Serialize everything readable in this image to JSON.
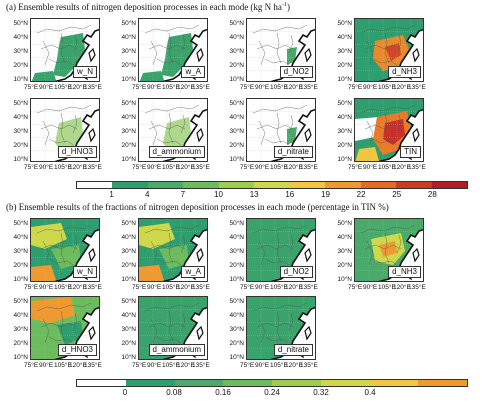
{
  "section_a": {
    "title": "(a) Ensemble results of nitrogen deposition processes in each mode (kg N ha",
    "title_sup": "-1",
    "title_end": ")",
    "panels": [
      "w_N",
      "w_A",
      "d_NO2",
      "d_NH3",
      "d_HNO3",
      "d_ammonium",
      "d_nitrate",
      "TIN"
    ],
    "colorbar": {
      "ticks": [
        "1",
        "4",
        "7",
        "10",
        "13",
        "16",
        "19",
        "22",
        "25",
        "28"
      ],
      "colors": [
        "#ffffff",
        "#2e9e6e",
        "#4aaa6a",
        "#6cbb5c",
        "#9ccc50",
        "#cfd84a",
        "#f2c640",
        "#ef9a30",
        "#e46a26",
        "#cf3a22",
        "#b21e22"
      ]
    }
  },
  "section_b": {
    "title": "(b) Ensemble results of the fractions of nitrogen deposition processes in each mode (percentage in TIN %)",
    "panels": [
      "w_N",
      "w_A",
      "d_NO2",
      "d_NH3",
      "d_HNO3",
      "d_ammonium",
      "d_nitrate"
    ],
    "colorbar": {
      "ticks": [
        "0",
        "0.08",
        "0.16",
        "0.24",
        "0.32",
        "0.4"
      ],
      "colors": [
        "#ffffff",
        "#2e9e6e",
        "#4aaa6a",
        "#6cbb5c",
        "#9ccc50",
        "#cfd84a",
        "#f2c640",
        "#ef9a30"
      ]
    }
  },
  "axes": {
    "lat_labels": [
      "50°N",
      "40°N",
      "30°N",
      "20°N",
      "10°N"
    ],
    "lon_labels": [
      "75°E",
      "90°E",
      "105°E",
      "120°E",
      "135°E"
    ]
  }
}
